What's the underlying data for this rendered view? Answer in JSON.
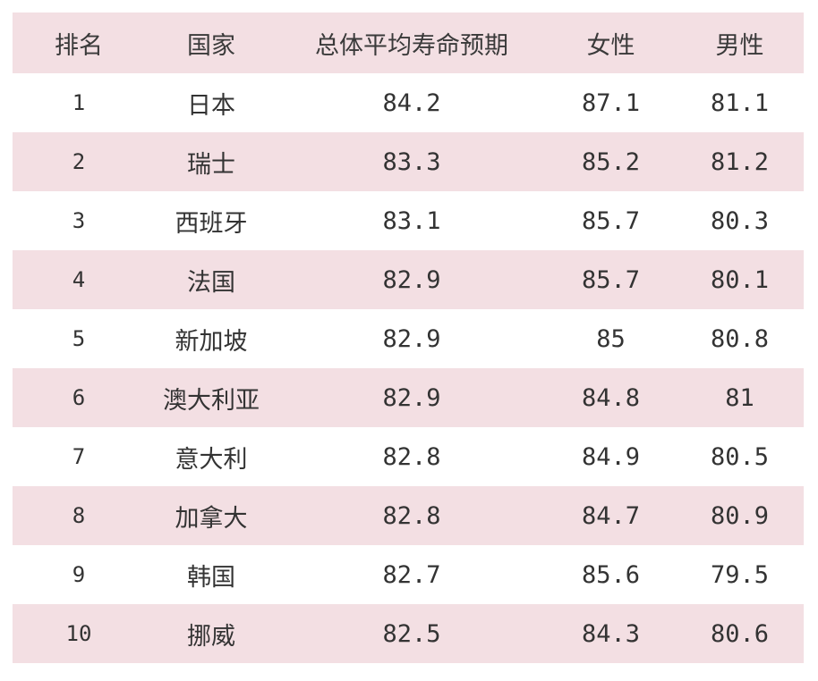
{
  "table": {
    "headers": {
      "rank": "排名",
      "country": "国家",
      "total": "总体平均寿命预期",
      "female": "女性",
      "male": "男性"
    },
    "rows": [
      {
        "rank": "1",
        "country": "日本",
        "total": "84.2",
        "female": "87.1",
        "male": "81.1"
      },
      {
        "rank": "2",
        "country": "瑞士",
        "total": "83.3",
        "female": "85.2",
        "male": "81.2"
      },
      {
        "rank": "3",
        "country": "西班牙",
        "total": "83.1",
        "female": "85.7",
        "male": "80.3"
      },
      {
        "rank": "4",
        "country": "法国",
        "total": "82.9",
        "female": "85.7",
        "male": "80.1"
      },
      {
        "rank": "5",
        "country": "新加坡",
        "total": "82.9",
        "female": "85",
        "male": "80.8"
      },
      {
        "rank": "6",
        "country": "澳大利亚",
        "total": "82.9",
        "female": "84.8",
        "male": "81"
      },
      {
        "rank": "7",
        "country": "意大利",
        "total": "82.8",
        "female": "84.9",
        "male": "80.5"
      },
      {
        "rank": "8",
        "country": "加拿大",
        "total": "82.8",
        "female": "84.7",
        "male": "80.9"
      },
      {
        "rank": "9",
        "country": "韩国",
        "total": "82.7",
        "female": "85.6",
        "male": "79.5"
      },
      {
        "rank": "10",
        "country": "挪威",
        "total": "82.5",
        "female": "84.3",
        "male": "80.6"
      }
    ]
  },
  "colors": {
    "shaded_row": "#f3dfe3",
    "plain_row": "#ffffff",
    "text": "#333333"
  }
}
